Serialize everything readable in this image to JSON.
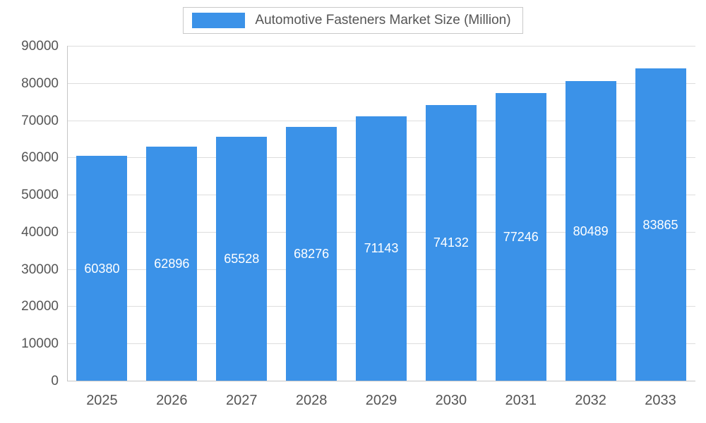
{
  "chart_data": {
    "type": "bar",
    "title": "Automotive Fasteners Market Size (Million)",
    "categories": [
      "2025",
      "2026",
      "2027",
      "2028",
      "2029",
      "2030",
      "2031",
      "2032",
      "2033"
    ],
    "values": [
      60380,
      62896,
      65528,
      68276,
      71143,
      74132,
      77246,
      80489,
      83865
    ],
    "xlabel": "",
    "ylabel": "",
    "ylim": [
      0,
      90000
    ],
    "ytick_step": 10000,
    "ytick_labels": [
      "0",
      "10000",
      "20000",
      "30000",
      "40000",
      "50000",
      "60000",
      "70000",
      "80000",
      "90000"
    ],
    "grid": true,
    "legend_position": "top-center",
    "bar_color": "#3B92E8",
    "value_label_color": "#FFFFFF",
    "axis_text_color": "#555555",
    "grid_color": "#DDDDDD"
  }
}
